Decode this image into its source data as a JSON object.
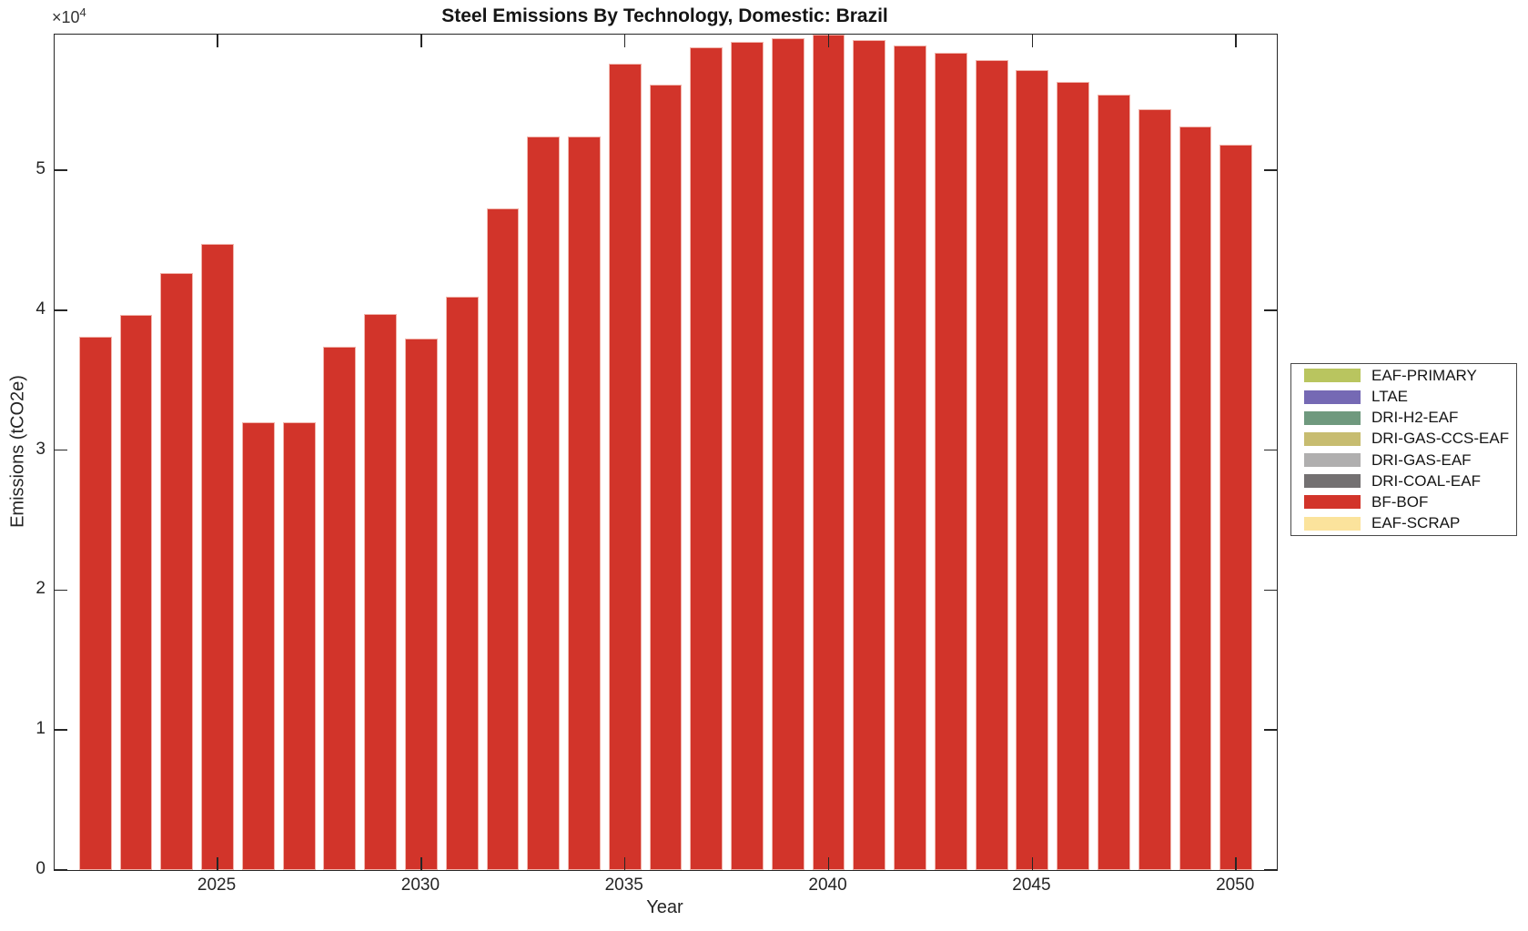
{
  "figure": {
    "title": "Steel Emissions By Technology, Domestic: Brazil",
    "xlabel": "Year",
    "ylabel": "Emissions (tCO2e)",
    "y_axis_multiplier_base": "×10",
    "y_axis_multiplier_exponent": "4"
  },
  "chart_data": {
    "type": "bar",
    "title": "Steel Emissions By Technology, Domestic: Brazil",
    "xlabel": "Year",
    "ylabel": "Emissions (tCO2e)",
    "x": [
      2022,
      2023,
      2024,
      2025,
      2026,
      2027,
      2028,
      2029,
      2030,
      2031,
      2032,
      2033,
      2034,
      2035,
      2036,
      2037,
      2038,
      2039,
      2040,
      2041,
      2042,
      2043,
      2044,
      2045,
      2046,
      2047,
      2048,
      2049,
      2050
    ],
    "series": [
      {
        "name": "BF-BOF",
        "color": "#d2342a",
        "values": [
          38100,
          39650,
          42650,
          44750,
          32000,
          32000,
          37400,
          39750,
          37950,
          41000,
          47250,
          52400,
          52400,
          57600,
          56100,
          58800,
          59200,
          59450,
          59700,
          59300,
          58950,
          58400,
          57850,
          57150,
          56350,
          55400,
          54350,
          53150,
          51850
        ]
      }
    ],
    "x_ticks": [
      2025,
      2030,
      2035,
      2040,
      2045,
      2050
    ],
    "y_ticks": [
      0,
      1,
      2,
      3,
      4,
      5
    ],
    "y_tick_scale": 10000,
    "y_tick_scale_label": "×10^4",
    "xlim": [
      2021,
      2051
    ],
    "ylim": [
      0,
      59700
    ],
    "bar_width_fraction": 0.8,
    "grid": false,
    "tick_direction": "in",
    "legend_position": "outside-right",
    "legend": [
      {
        "label": "EAF-PRIMARY",
        "color": "#b9c55f"
      },
      {
        "label": "LTAE",
        "color": "#7569b4"
      },
      {
        "label": "DRI-H2-EAF",
        "color": "#6f997e"
      },
      {
        "label": "DRI-GAS-CCS-EAF",
        "color": "#c7bc70"
      },
      {
        "label": "DRI-GAS-EAF",
        "color": "#b0afaf"
      },
      {
        "label": "DRI-COAL-EAF",
        "color": "#747172"
      },
      {
        "label": "BF-BOF",
        "color": "#d2342a"
      },
      {
        "label": "EAF-SCRAP",
        "color": "#fbe39c"
      }
    ],
    "colors": {
      "bar_fill": "#d2342a",
      "bar_edge": "#f1b4ab",
      "axis": "#262626"
    }
  }
}
